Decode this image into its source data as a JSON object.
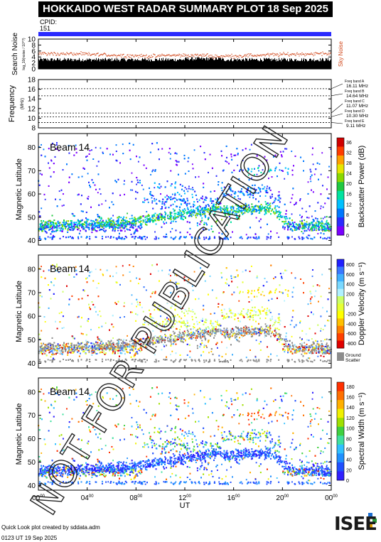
{
  "header": {
    "title": "HOKKAIDO WEST RADAR SUMMARY PLOT",
    "date": "18 Sep 2025",
    "cpid_label": "CPID:",
    "cpid_value": "151"
  },
  "footer": {
    "credit": "Quick Look plot created by sddata.adm",
    "timestamp": "0123 UT 19 Sep 2025",
    "logo": "ISEE"
  },
  "watermark": "NOT FOR PUBLICATION",
  "colors": {
    "blue_bar": "#2a2aff",
    "noise_red": "#d24a1e",
    "ground_scatter": "#8c8c8c"
  },
  "chart_data": [
    {
      "type": "area",
      "name": "noise",
      "ylabel": "Search Noise",
      "ylabel_sub": "log_10(noise / 10^?)",
      "ylim": [
        0,
        10
      ],
      "yticks": [
        "0",
        "2",
        "4",
        "6",
        "8",
        "10"
      ],
      "right_label": "Sky Noise",
      "search_noise_level": 2.5,
      "sky_noise_level": 4.6
    },
    {
      "type": "line",
      "name": "frequency",
      "ylabel": "Frequency",
      "ylabel_sub": "(MHz)",
      "ylim": [
        8,
        18
      ],
      "yticks": [
        "8",
        "10",
        "12",
        "14",
        "16",
        "18"
      ],
      "bands": [
        {
          "label": "Freq band A",
          "value": "16.11 MHz",
          "f": 16.11
        },
        {
          "label": "Freq band B",
          "value": "14.64 MHz",
          "f": 14.64
        },
        {
          "label": "Freq band C",
          "value": "11.07 MHz",
          "f": 11.07
        },
        {
          "label": "Freq band D",
          "value": "10.30 MHz",
          "f": 10.3
        },
        {
          "label": "Freq band E",
          "value": "9.11 MHz",
          "f": 9.11
        }
      ]
    },
    {
      "type": "heatmap",
      "name": "power",
      "beam_label": "Beam 14",
      "ylabel": "Magnetic Latitude",
      "ylim": [
        38,
        86
      ],
      "yticks": [
        "40",
        "50",
        "60",
        "70",
        "80"
      ],
      "colorbar_label": "Backscatter Power (dB)",
      "colorbar_ticks": [
        "0",
        "4",
        "8",
        "12",
        "16",
        "20",
        "24",
        "28",
        "32",
        "36"
      ]
    },
    {
      "type": "heatmap",
      "name": "velocity",
      "beam_label": "Beam 14",
      "ylabel": "Magnetic Latitude",
      "ylim": [
        38,
        86
      ],
      "yticks": [
        "40",
        "50",
        "60",
        "70",
        "80"
      ],
      "colorbar_label": "Doppler Velocity (m s⁻¹)",
      "colorbar_ticks": [
        "800",
        "600",
        "400",
        "200",
        "0",
        "-200",
        "-400",
        "-600",
        "-800"
      ],
      "ground_label_1": "Ground",
      "ground_label_2": "Scatter"
    },
    {
      "type": "heatmap",
      "name": "width",
      "beam_label": "Beam 14",
      "ylabel": "Magnetic Latitude",
      "ylim": [
        38,
        86
      ],
      "yticks": [
        "40",
        "50",
        "60",
        "70",
        "80"
      ],
      "colorbar_label": "Spectral Width (m s⁻¹)",
      "colorbar_ticks": [
        "0",
        "20",
        "40",
        "60",
        "80",
        "100",
        "120",
        "140",
        "160",
        "180"
      ]
    }
  ],
  "xaxis": {
    "label": "UT",
    "range_hours": [
      0,
      24
    ],
    "ticks": [
      {
        "h": 0,
        "hh": "00",
        "mm": "00"
      },
      {
        "h": 4,
        "hh": "04",
        "mm": "00"
      },
      {
        "h": 8,
        "hh": "08",
        "mm": "00"
      },
      {
        "h": 12,
        "hh": "12",
        "mm": "00"
      },
      {
        "h": 16,
        "hh": "16",
        "mm": "00"
      },
      {
        "h": 20,
        "hh": "20",
        "mm": "00"
      },
      {
        "h": 24,
        "hh": "00",
        "mm": "00"
      }
    ]
  }
}
